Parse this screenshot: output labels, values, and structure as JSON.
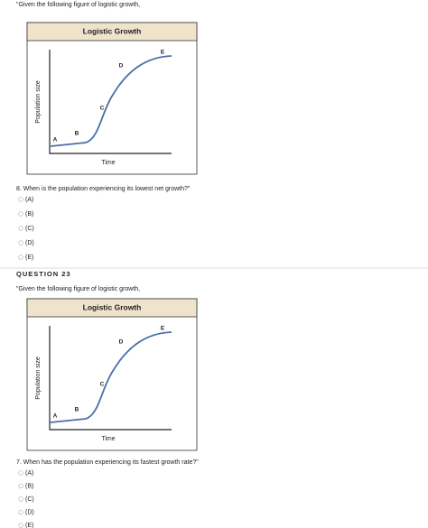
{
  "blocks": [
    {
      "intro": "\"Given the following figure of logistic growth,",
      "figure": {
        "title": "Logistic Growth",
        "y_label": "Population size",
        "x_label": "Time",
        "points": [
          "A",
          "B",
          "C",
          "D",
          "E"
        ]
      },
      "prompt": "8. When is the population experiencing its lowest net growth?\"",
      "options": [
        "(A)",
        "(B)",
        "(C)",
        "(D)",
        "(E)"
      ]
    },
    {
      "heading": "QUESTION 23",
      "intro": "\"Given the following figure of logistic growth,",
      "figure": {
        "title": "Logistic Growth",
        "y_label": "Population size",
        "x_label": "Time",
        "points": [
          "A",
          "B",
          "C",
          "D",
          "E"
        ]
      },
      "prompt": "7. When has the population experiencing its fastest growth rate?\"",
      "options": [
        "(A)",
        "(B)",
        "(C)",
        "(D)",
        "(E)"
      ]
    }
  ]
}
